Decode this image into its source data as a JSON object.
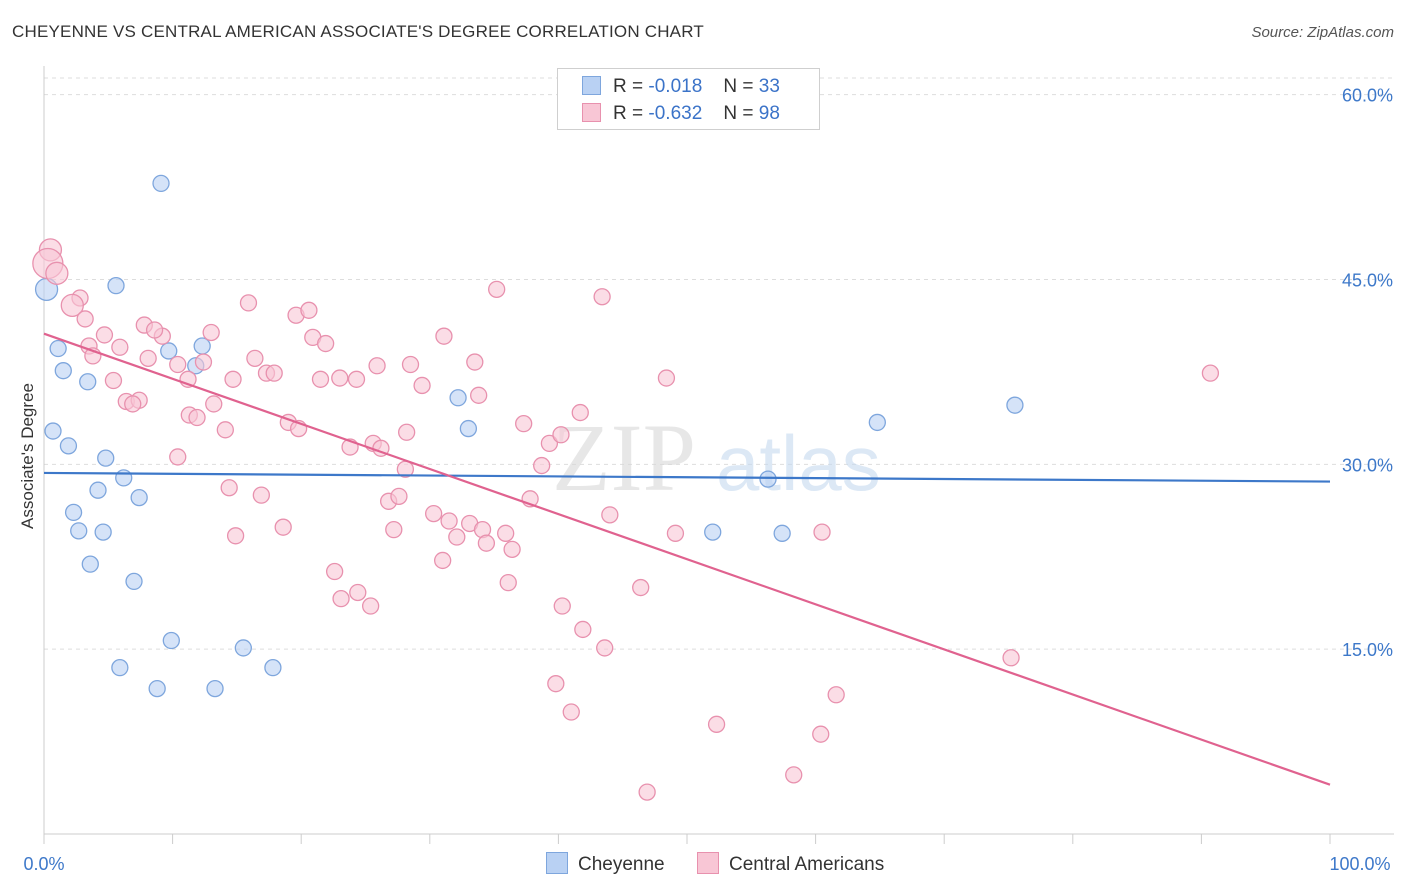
{
  "title": "CHEYENNE VS CENTRAL AMERICAN ASSOCIATE'S DEGREE CORRELATION CHART",
  "source": "Source: ZipAtlas.com",
  "watermark": {
    "zip": "ZIP",
    "atlas": "atlas"
  },
  "legend": {
    "r_label": "R =",
    "n_label": "N =",
    "series": [
      {
        "name": "Cheyenne",
        "r": "-0.018",
        "n": "33",
        "fill": "#b9d1f3",
        "stroke": "#7ea6dd"
      },
      {
        "name": "Central Americans",
        "r": "-0.632",
        "n": "98",
        "fill": "#f8c6d5",
        "stroke": "#e891ae"
      }
    ]
  },
  "chart_data": {
    "type": "scatter",
    "title": "CHEYENNE VS CENTRAL AMERICAN ASSOCIATE'S DEGREE CORRELATION CHART",
    "xlabel": "",
    "ylabel": "Associate's Degree",
    "xlim": [
      0,
      100
    ],
    "ylim": [
      0,
      62
    ],
    "x_tick_labels": [
      "0.0%",
      "100.0%"
    ],
    "y_ticks": [
      15,
      30,
      45,
      60
    ],
    "y_tick_labels": [
      "15.0%",
      "30.0%",
      "45.0%",
      "60.0%"
    ],
    "grid": true,
    "colors": {
      "Cheyenne": "#3d78c9",
      "Central Americans": "#e0628f",
      "axis_label": "#3d78c9"
    },
    "series": [
      {
        "name": "Cheyenne",
        "trend": {
          "x": [
            0,
            100
          ],
          "y": [
            29.3,
            28.6
          ]
        },
        "points": [
          {
            "x": 0.2,
            "y": 44.2,
            "s": 2
          },
          {
            "x": 9.1,
            "y": 52.8,
            "s": 1
          },
          {
            "x": 5.6,
            "y": 44.5,
            "s": 1
          },
          {
            "x": 1.1,
            "y": 39.4,
            "s": 1
          },
          {
            "x": 1.5,
            "y": 37.6,
            "s": 1
          },
          {
            "x": 3.4,
            "y": 36.7,
            "s": 1
          },
          {
            "x": 9.7,
            "y": 39.2,
            "s": 1
          },
          {
            "x": 11.8,
            "y": 38.0,
            "s": 1
          },
          {
            "x": 12.3,
            "y": 39.6,
            "s": 1
          },
          {
            "x": 0.7,
            "y": 32.7,
            "s": 1
          },
          {
            "x": 1.9,
            "y": 31.5,
            "s": 1
          },
          {
            "x": 4.8,
            "y": 30.5,
            "s": 1
          },
          {
            "x": 6.2,
            "y": 28.9,
            "s": 1
          },
          {
            "x": 4.2,
            "y": 27.9,
            "s": 1
          },
          {
            "x": 7.4,
            "y": 27.3,
            "s": 1
          },
          {
            "x": 2.3,
            "y": 26.1,
            "s": 1
          },
          {
            "x": 2.7,
            "y": 24.6,
            "s": 1
          },
          {
            "x": 4.6,
            "y": 24.5,
            "s": 1
          },
          {
            "x": 3.6,
            "y": 21.9,
            "s": 1
          },
          {
            "x": 7.0,
            "y": 20.5,
            "s": 1
          },
          {
            "x": 9.9,
            "y": 15.7,
            "s": 1
          },
          {
            "x": 15.5,
            "y": 15.1,
            "s": 1
          },
          {
            "x": 5.9,
            "y": 13.5,
            "s": 1
          },
          {
            "x": 17.8,
            "y": 13.5,
            "s": 1
          },
          {
            "x": 8.8,
            "y": 11.8,
            "s": 1
          },
          {
            "x": 13.3,
            "y": 11.8,
            "s": 1
          },
          {
            "x": 33.0,
            "y": 32.9,
            "s": 1
          },
          {
            "x": 32.2,
            "y": 35.4,
            "s": 1
          },
          {
            "x": 64.8,
            "y": 33.4,
            "s": 1
          },
          {
            "x": 56.3,
            "y": 28.8,
            "s": 1
          },
          {
            "x": 52.0,
            "y": 24.5,
            "s": 1
          },
          {
            "x": 57.4,
            "y": 24.4,
            "s": 1
          },
          {
            "x": 75.5,
            "y": 34.8,
            "s": 1
          }
        ]
      },
      {
        "name": "Central Americans",
        "trend": {
          "x": [
            0,
            100
          ],
          "y": [
            40.6,
            4.0
          ]
        },
        "points": [
          {
            "x": 0.5,
            "y": 47.4,
            "s": 2
          },
          {
            "x": 0.3,
            "y": 46.3,
            "s": 3
          },
          {
            "x": 1.0,
            "y": 45.5,
            "s": 2
          },
          {
            "x": 2.8,
            "y": 43.5,
            "s": 1
          },
          {
            "x": 2.2,
            "y": 42.9,
            "s": 2
          },
          {
            "x": 3.2,
            "y": 41.8,
            "s": 1
          },
          {
            "x": 4.7,
            "y": 40.5,
            "s": 1
          },
          {
            "x": 7.8,
            "y": 41.3,
            "s": 1
          },
          {
            "x": 9.2,
            "y": 40.4,
            "s": 1
          },
          {
            "x": 8.6,
            "y": 40.9,
            "s": 1
          },
          {
            "x": 3.5,
            "y": 39.6,
            "s": 1
          },
          {
            "x": 5.9,
            "y": 39.5,
            "s": 1
          },
          {
            "x": 3.8,
            "y": 38.8,
            "s": 1
          },
          {
            "x": 8.1,
            "y": 38.6,
            "s": 1
          },
          {
            "x": 10.4,
            "y": 38.1,
            "s": 1
          },
          {
            "x": 12.4,
            "y": 38.3,
            "s": 1
          },
          {
            "x": 13.0,
            "y": 40.7,
            "s": 1
          },
          {
            "x": 14.7,
            "y": 36.9,
            "s": 1
          },
          {
            "x": 11.2,
            "y": 36.9,
            "s": 1
          },
          {
            "x": 5.4,
            "y": 36.8,
            "s": 1
          },
          {
            "x": 6.4,
            "y": 35.1,
            "s": 1
          },
          {
            "x": 7.4,
            "y": 35.2,
            "s": 1
          },
          {
            "x": 6.9,
            "y": 34.9,
            "s": 1
          },
          {
            "x": 13.2,
            "y": 34.9,
            "s": 1
          },
          {
            "x": 11.3,
            "y": 34.0,
            "s": 1
          },
          {
            "x": 11.9,
            "y": 33.8,
            "s": 1
          },
          {
            "x": 14.1,
            "y": 32.8,
            "s": 1
          },
          {
            "x": 10.4,
            "y": 30.6,
            "s": 1
          },
          {
            "x": 14.4,
            "y": 28.1,
            "s": 1
          },
          {
            "x": 16.9,
            "y": 27.5,
            "s": 1
          },
          {
            "x": 14.9,
            "y": 24.2,
            "s": 1
          },
          {
            "x": 18.6,
            "y": 24.9,
            "s": 1
          },
          {
            "x": 15.9,
            "y": 43.1,
            "s": 1
          },
          {
            "x": 19.6,
            "y": 42.1,
            "s": 1
          },
          {
            "x": 20.6,
            "y": 42.5,
            "s": 1
          },
          {
            "x": 16.4,
            "y": 38.6,
            "s": 1
          },
          {
            "x": 17.3,
            "y": 37.4,
            "s": 1
          },
          {
            "x": 17.9,
            "y": 37.4,
            "s": 1
          },
          {
            "x": 20.9,
            "y": 40.3,
            "s": 1
          },
          {
            "x": 21.9,
            "y": 39.8,
            "s": 1
          },
          {
            "x": 21.5,
            "y": 36.9,
            "s": 1
          },
          {
            "x": 23.0,
            "y": 37.0,
            "s": 1
          },
          {
            "x": 24.3,
            "y": 36.9,
            "s": 1
          },
          {
            "x": 19.0,
            "y": 33.4,
            "s": 1
          },
          {
            "x": 19.8,
            "y": 32.9,
            "s": 1
          },
          {
            "x": 23.8,
            "y": 31.4,
            "s": 1
          },
          {
            "x": 25.6,
            "y": 31.7,
            "s": 1
          },
          {
            "x": 26.2,
            "y": 31.3,
            "s": 1
          },
          {
            "x": 28.1,
            "y": 29.6,
            "s": 1
          },
          {
            "x": 25.9,
            "y": 38.0,
            "s": 1
          },
          {
            "x": 28.5,
            "y": 38.1,
            "s": 1
          },
          {
            "x": 29.4,
            "y": 36.4,
            "s": 1
          },
          {
            "x": 31.1,
            "y": 40.4,
            "s": 1
          },
          {
            "x": 33.5,
            "y": 38.3,
            "s": 1
          },
          {
            "x": 33.8,
            "y": 35.6,
            "s": 1
          },
          {
            "x": 35.2,
            "y": 44.2,
            "s": 1
          },
          {
            "x": 28.2,
            "y": 32.6,
            "s": 1
          },
          {
            "x": 26.8,
            "y": 27.0,
            "s": 1
          },
          {
            "x": 27.6,
            "y": 27.4,
            "s": 1
          },
          {
            "x": 30.3,
            "y": 26.0,
            "s": 1
          },
          {
            "x": 31.5,
            "y": 25.4,
            "s": 1
          },
          {
            "x": 33.1,
            "y": 25.2,
            "s": 1
          },
          {
            "x": 34.1,
            "y": 24.7,
            "s": 1
          },
          {
            "x": 35.9,
            "y": 24.4,
            "s": 1
          },
          {
            "x": 32.1,
            "y": 24.1,
            "s": 1
          },
          {
            "x": 34.4,
            "y": 23.6,
            "s": 1
          },
          {
            "x": 36.4,
            "y": 23.1,
            "s": 1
          },
          {
            "x": 27.2,
            "y": 24.7,
            "s": 1
          },
          {
            "x": 31.0,
            "y": 22.2,
            "s": 1
          },
          {
            "x": 37.3,
            "y": 33.3,
            "s": 1
          },
          {
            "x": 39.3,
            "y": 31.7,
            "s": 1
          },
          {
            "x": 40.2,
            "y": 32.4,
            "s": 1
          },
          {
            "x": 38.7,
            "y": 29.9,
            "s": 1
          },
          {
            "x": 37.8,
            "y": 27.2,
            "s": 1
          },
          {
            "x": 41.7,
            "y": 34.2,
            "s": 1
          },
          {
            "x": 43.4,
            "y": 43.6,
            "s": 1
          },
          {
            "x": 44.0,
            "y": 25.9,
            "s": 1
          },
          {
            "x": 48.4,
            "y": 37.0,
            "s": 1
          },
          {
            "x": 49.1,
            "y": 24.4,
            "s": 1
          },
          {
            "x": 60.5,
            "y": 24.5,
            "s": 1
          },
          {
            "x": 90.7,
            "y": 37.4,
            "s": 1
          },
          {
            "x": 22.6,
            "y": 21.3,
            "s": 1
          },
          {
            "x": 23.1,
            "y": 19.1,
            "s": 1
          },
          {
            "x": 24.4,
            "y": 19.6,
            "s": 1
          },
          {
            "x": 25.4,
            "y": 18.5,
            "s": 1
          },
          {
            "x": 36.1,
            "y": 20.4,
            "s": 1
          },
          {
            "x": 40.3,
            "y": 18.5,
            "s": 1
          },
          {
            "x": 46.4,
            "y": 20.0,
            "s": 1
          },
          {
            "x": 41.9,
            "y": 16.6,
            "s": 1
          },
          {
            "x": 43.6,
            "y": 15.1,
            "s": 1
          },
          {
            "x": 39.8,
            "y": 12.2,
            "s": 1
          },
          {
            "x": 41.0,
            "y": 9.9,
            "s": 1
          },
          {
            "x": 52.3,
            "y": 8.9,
            "s": 1
          },
          {
            "x": 60.4,
            "y": 8.1,
            "s": 1
          },
          {
            "x": 61.6,
            "y": 11.3,
            "s": 1
          },
          {
            "x": 75.2,
            "y": 14.3,
            "s": 1
          },
          {
            "x": 58.3,
            "y": 4.8,
            "s": 1
          },
          {
            "x": 46.9,
            "y": 3.4,
            "s": 1
          }
        ]
      }
    ]
  }
}
